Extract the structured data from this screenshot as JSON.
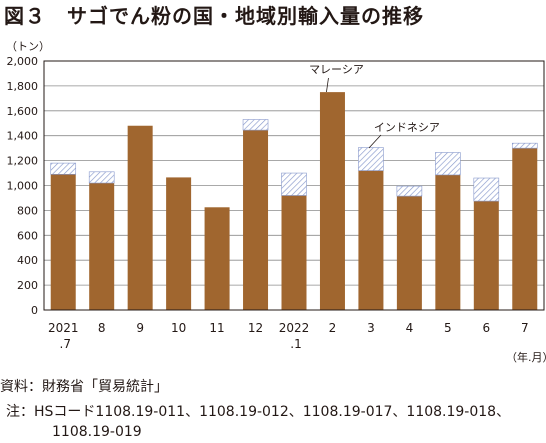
{
  "figure": {
    "title": "図３　サゴでん粉の国・地域別輸入量の推移",
    "source": "資料：財務省「貿易統計」",
    "note_line1": "注：HSコード1108.19-011、1108.19-012、1108.19-017、1108.19-018、",
    "note_line2": "1108.19-019"
  },
  "chart_data": {
    "type": "bar",
    "stacked": true,
    "unit_label": "（トン）",
    "x_unit_label": "（年.月）",
    "categories": [
      "2021\n.7",
      "8",
      "9",
      "10",
      "11",
      "12",
      "2022\n.1",
      "2",
      "3",
      "4",
      "5",
      "6",
      "7"
    ],
    "series": [
      {
        "name": "マレーシア",
        "color": "#a0662f",
        "values": [
          1090,
          1020,
          1480,
          1065,
          825,
          1445,
          920,
          1750,
          1120,
          915,
          1085,
          875,
          1300
        ]
      },
      {
        "name": "インドネシア",
        "color": "#8899cc",
        "pattern": "hatch",
        "values": [
          90,
          90,
          0,
          0,
          0,
          85,
          180,
          0,
          185,
          80,
          180,
          185,
          40
        ]
      }
    ],
    "ylim": [
      0,
      2000
    ],
    "yticks": [
      0,
      200,
      400,
      600,
      800,
      1000,
      1200,
      1400,
      1600,
      1800,
      2000
    ],
    "ytick_labels": [
      "0",
      "200",
      "400",
      "600",
      "800",
      "1,000",
      "1,200",
      "1,400",
      "1,600",
      "1,800",
      "2,000"
    ],
    "grid": true,
    "annotations": [
      {
        "text": "マレーシア",
        "series": 0,
        "category": 7
      },
      {
        "text": "インドネシア",
        "series": 1,
        "category": 8
      }
    ]
  }
}
